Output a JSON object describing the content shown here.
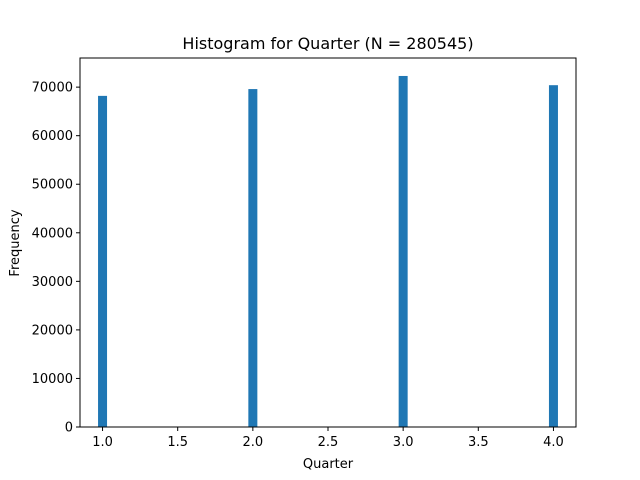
{
  "chart_data": {
    "type": "bar",
    "title": "Histogram for Quarter (N = 280545)",
    "xlabel": "Quarter",
    "ylabel": "Frequency",
    "bins": [
      {
        "x": 1.0,
        "value": 68200
      },
      {
        "x": 2.0,
        "value": 69600
      },
      {
        "x": 3.0,
        "value": 72300
      },
      {
        "x": 4.0,
        "value": 70400
      }
    ],
    "xlim": [
      0.85,
      4.15
    ],
    "ylim": [
      0,
      76000
    ],
    "xticks": [
      "1.0",
      "1.5",
      "2.0",
      "2.5",
      "3.0",
      "3.5",
      "4.0"
    ],
    "yticks": [
      "0",
      "10000",
      "20000",
      "30000",
      "40000",
      "50000",
      "60000",
      "70000"
    ],
    "bar_color": "#1f77b4",
    "grid": false,
    "legend": "none"
  }
}
